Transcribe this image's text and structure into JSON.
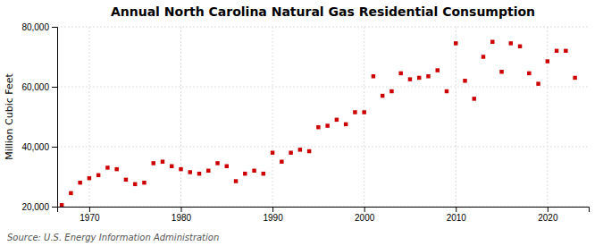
{
  "chart_data": {
    "type": "scatter",
    "title": "Annual North Carolina Natural Gas Residential Consumption",
    "ylabel": "Million Cubic Feet",
    "source": "Source: U.S. Energy Information Administration",
    "color": "#cc0000",
    "marker": "square",
    "grid": true,
    "xlim": [
      1966.5,
      2024.5
    ],
    "xticks": [
      1970,
      1980,
      1990,
      2000,
      2010,
      2020
    ],
    "ylim": [
      20000,
      80000
    ],
    "yticks": [
      {
        "value": 20000,
        "label": "20,000"
      },
      {
        "value": 40000,
        "label": "40,000"
      },
      {
        "value": 60000,
        "label": "60,000"
      },
      {
        "value": 80000,
        "label": "80,000"
      }
    ],
    "x": [
      1967,
      1968,
      1969,
      1970,
      1971,
      1972,
      1973,
      1974,
      1975,
      1976,
      1977,
      1978,
      1979,
      1980,
      1981,
      1982,
      1983,
      1984,
      1985,
      1986,
      1987,
      1988,
      1989,
      1990,
      1991,
      1992,
      1993,
      1994,
      1995,
      1996,
      1997,
      1998,
      1999,
      2000,
      2001,
      2002,
      2003,
      2004,
      2005,
      2006,
      2007,
      2008,
      2009,
      2010,
      2011,
      2012,
      2013,
      2014,
      2015,
      2016,
      2017,
      2018,
      2019,
      2020,
      2021,
      2022,
      2023
    ],
    "values": [
      20500,
      24500,
      28000,
      29500,
      30500,
      33000,
      32500,
      29000,
      27500,
      28000,
      34500,
      35000,
      33500,
      32500,
      31500,
      31000,
      32000,
      34500,
      33500,
      28500,
      31000,
      32000,
      31000,
      38000,
      35000,
      38000,
      39000,
      38500,
      46500,
      47000,
      49000,
      47500,
      51500,
      51500,
      63500,
      57000,
      58500,
      64500,
      62500,
      63000,
      63500,
      65500,
      58500,
      74500,
      62000,
      56000,
      70000,
      75000,
      65000,
      74500,
      73500,
      64500,
      61000,
      68500,
      72000,
      72000,
      63000
    ]
  }
}
